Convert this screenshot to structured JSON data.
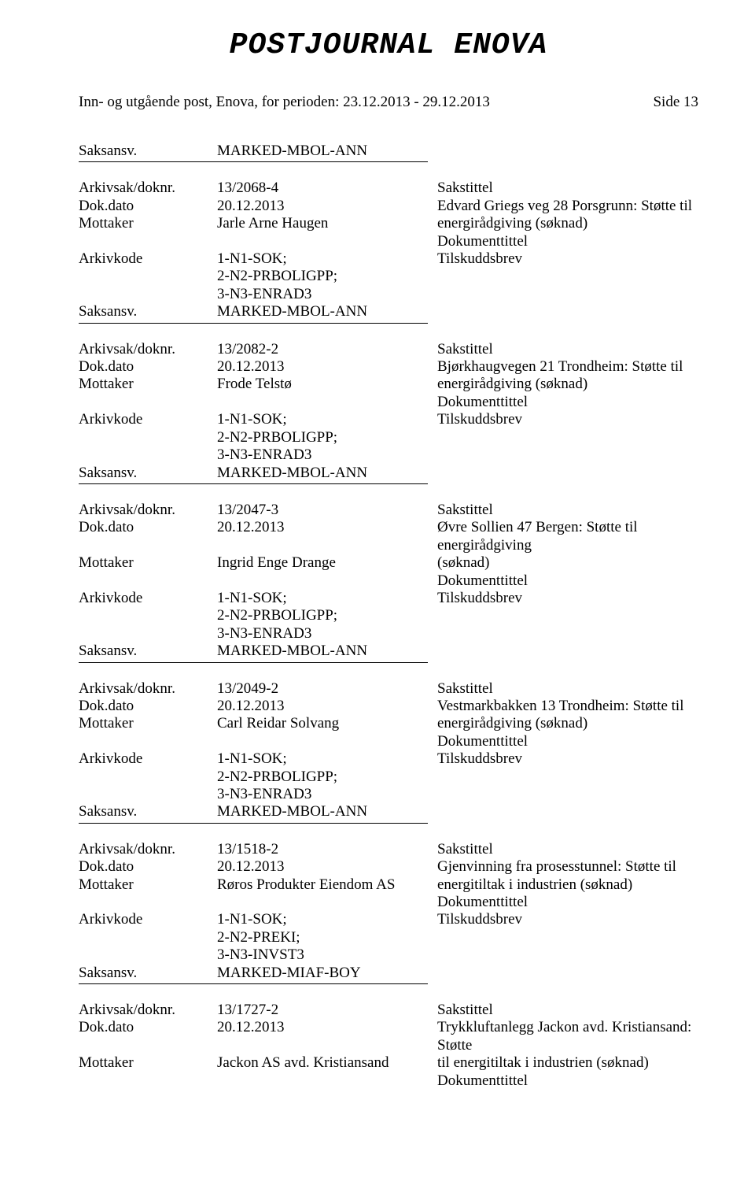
{
  "title": "POSTJOURNAL ENOVA",
  "period_line": "Inn- og utgående post, Enova, for perioden: 23.12.2013 - 29.12.2013",
  "page_number": "Side 13",
  "labels": {
    "saksansv": "Saksansv.",
    "arkivsak": "Arkivsak/doknr.",
    "dokdato": "Dok.dato",
    "mottaker": "Mottaker",
    "arkivkode": "Arkivkode",
    "sakstittel": "Sakstittel",
    "dokumenttittel": "Dokumenttittel",
    "tilskuddsbrev": "Tilskuddsbrev"
  },
  "top_saksansv": "MARKED-MBOL-ANN",
  "entries": [
    {
      "arkivsak": "13/2068-4",
      "dokdato": "20.12.2013",
      "mottaker": "Jarle Arne Haugen",
      "sak_line1": "Edvard Griegs veg 28 Porsgrunn: Støtte til",
      "sak_line2": "energirådgiving (søknad)",
      "arkivkode_lines": [
        "1-N1-SOK;",
        "2-N2-PRBOLIGPP;",
        "3-N3-ENRAD3"
      ],
      "saksansv": "MARKED-MBOL-ANN"
    },
    {
      "arkivsak": "13/2082-2",
      "dokdato": "20.12.2013",
      "mottaker": "Frode Telstø",
      "sak_line1": "Bjørkhaugvegen 21 Trondheim: Støtte til",
      "sak_line2": "energirådgiving (søknad)",
      "arkivkode_lines": [
        "1-N1-SOK;",
        "2-N2-PRBOLIGPP;",
        "3-N3-ENRAD3"
      ],
      "saksansv": "MARKED-MBOL-ANN"
    },
    {
      "arkivsak": "13/2047-3",
      "dokdato": "20.12.2013",
      "mottaker": "Ingrid Enge Drange",
      "sak_line1": "Øvre Sollien 47 Bergen: Støtte til energirådgiving",
      "sak_line2": "(søknad)",
      "arkivkode_lines": [
        "1-N1-SOK;",
        "2-N2-PRBOLIGPP;",
        "3-N3-ENRAD3"
      ],
      "saksansv": "MARKED-MBOL-ANN"
    },
    {
      "arkivsak": "13/2049-2",
      "dokdato": "20.12.2013",
      "mottaker": "Carl Reidar Solvang",
      "sak_line1": "Vestmarkbakken 13 Trondheim: Støtte til",
      "sak_line2": "energirådgiving (søknad)",
      "arkivkode_lines": [
        "1-N1-SOK;",
        "2-N2-PRBOLIGPP;",
        "3-N3-ENRAD3"
      ],
      "saksansv": "MARKED-MBOL-ANN"
    },
    {
      "arkivsak": "13/1518-2",
      "dokdato": "20.12.2013",
      "mottaker": "Røros Produkter Eiendom AS",
      "sak_line1": "Gjenvinning fra prosesstunnel: Støtte til",
      "sak_line2": "energitiltak i industrien (søknad)",
      "arkivkode_lines": [
        "1-N1-SOK;",
        "2-N2-PREKI;",
        "3-N3-INVST3"
      ],
      "saksansv": "MARKED-MIAF-BOY"
    },
    {
      "arkivsak": "13/1727-2",
      "dokdato": "20.12.2013",
      "mottaker": "Jackon AS avd. Kristiansand",
      "sak_line1": "Trykkluftanlegg Jackon avd. Kristiansand: Støtte",
      "sak_line2": "til energitiltak i industrien (søknad)",
      "arkivkode_lines": null,
      "saksansv": null
    }
  ]
}
